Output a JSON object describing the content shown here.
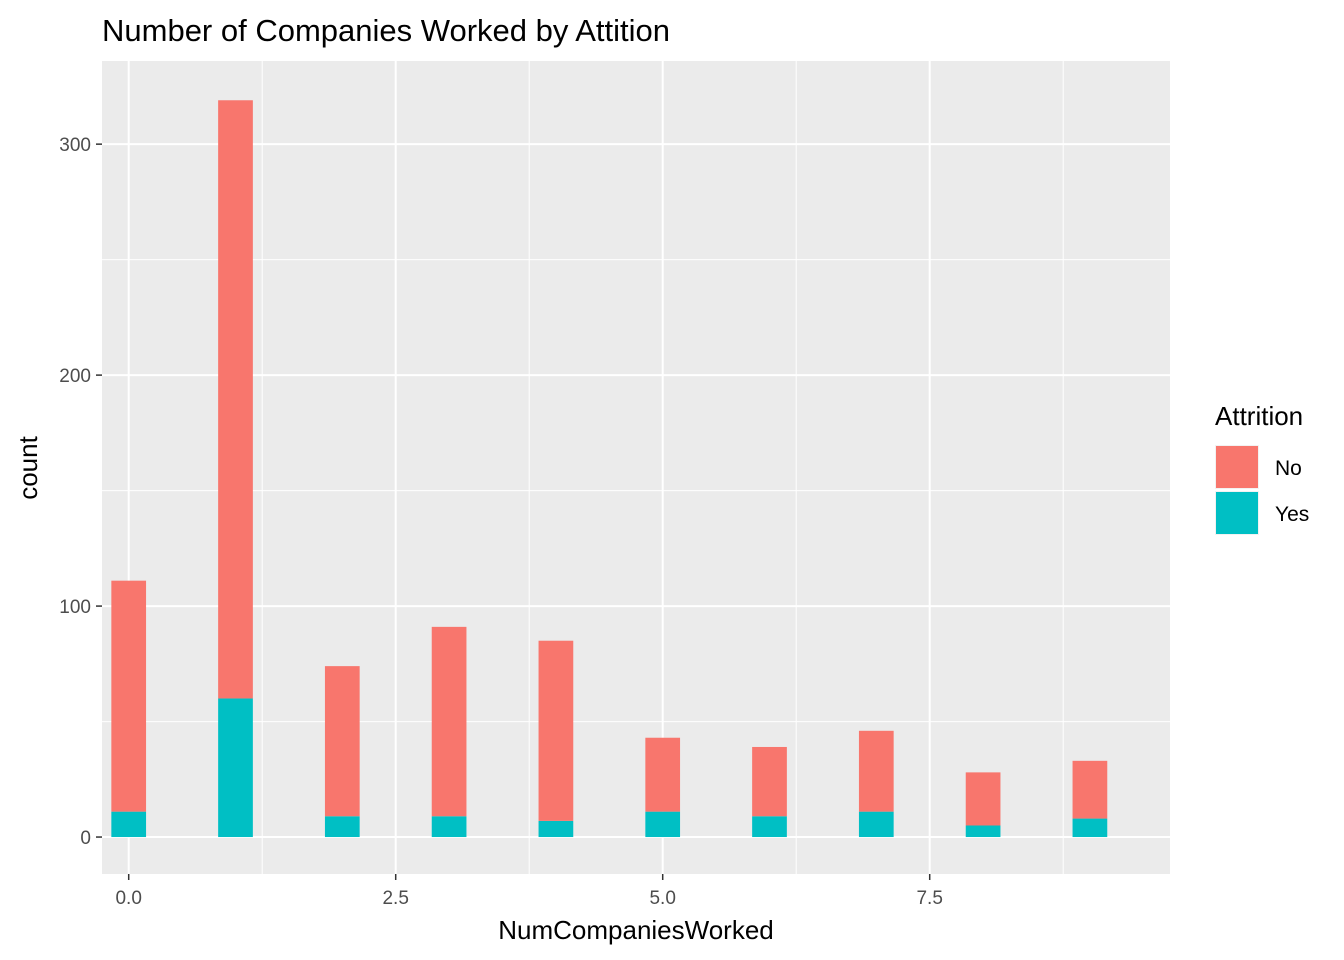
{
  "chart_data": {
    "type": "bar",
    "stacked": true,
    "title": "Number of Companies Worked by Attition",
    "xlabel": "NumCompaniesWorked",
    "ylabel": "count",
    "x": [
      0,
      1,
      2,
      3,
      4,
      5,
      6,
      7,
      8,
      9
    ],
    "series": [
      {
        "name": "No",
        "color": "#F8766D",
        "values": [
          100,
          259,
          65,
          82,
          78,
          32,
          30,
          35,
          23,
          25
        ]
      },
      {
        "name": "Yes",
        "color": "#00BFC4",
        "values": [
          11,
          60,
          9,
          9,
          7,
          11,
          9,
          11,
          5,
          8
        ]
      }
    ],
    "xlim": [
      -0.25,
      9.75
    ],
    "ylim": [
      -16,
      336
    ],
    "x_ticks": [
      0,
      2.5,
      5,
      7.5
    ],
    "x_tick_labels": [
      "0.0",
      "2.5",
      "5.0",
      "7.5"
    ],
    "y_ticks": [
      0,
      100,
      200,
      300
    ],
    "y_tick_labels": [
      "0",
      "100",
      "200",
      "300"
    ],
    "grid": true,
    "legend": {
      "title": "Attrition",
      "position": "right",
      "entries": [
        "No",
        "Yes"
      ]
    }
  }
}
